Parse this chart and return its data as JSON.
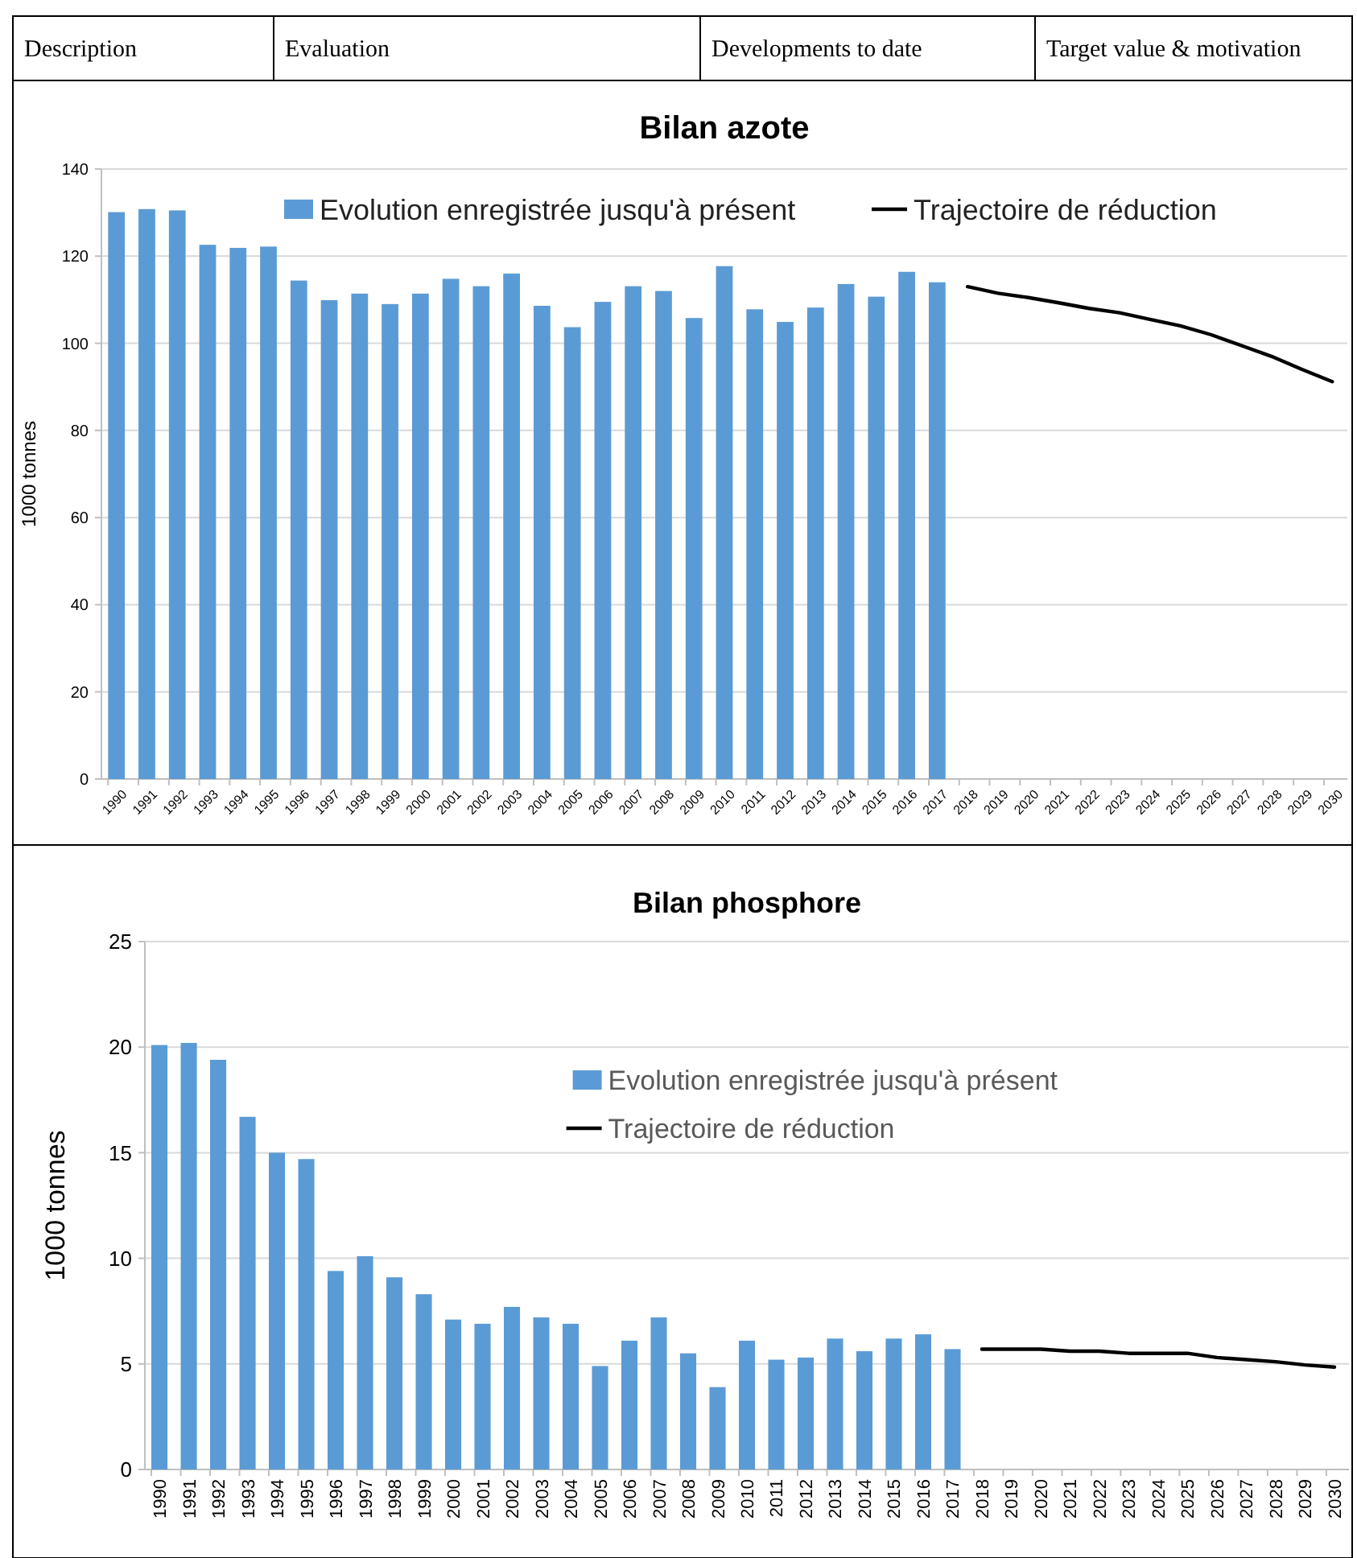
{
  "chart_data": [
    {
      "type": "other",
      "annotations": [
        "Description",
        "Evaluation",
        "Developments to date",
        "Target value & motivation"
      ]
    },
    {
      "type": "bar",
      "title": "Bilan azote",
      "ylabel": "1000 tonnes",
      "categories": [
        "1990",
        "1991",
        "1992",
        "1993",
        "1994",
        "1995",
        "1996",
        "1997",
        "1998",
        "1999",
        "2000",
        "2001",
        "2002",
        "2003",
        "2004",
        "2005",
        "2006",
        "2007",
        "2008",
        "2009",
        "2010",
        "2011",
        "2012",
        "2013",
        "2014",
        "2015",
        "2016",
        "2017",
        "2018",
        "2019",
        "2020",
        "2021",
        "2022",
        "2023",
        "2024",
        "2025",
        "2026",
        "2027",
        "2028",
        "2029",
        "2030"
      ],
      "series": [
        {
          "name": "Evolution enregistrée jusqu'à présent",
          "type": "bar",
          "color": "#5b9bd5",
          "values": [
            130.1,
            130.8,
            130.5,
            122.6,
            121.9,
            122.2,
            114.4,
            109.9,
            111.4,
            109.0,
            111.4,
            114.8,
            113.1,
            116.0,
            108.6,
            103.7,
            109.5,
            113.1,
            112.0,
            105.8,
            117.7,
            107.8,
            104.9,
            108.2,
            113.6,
            110.7,
            116.4,
            114.0,
            null,
            null,
            null,
            null,
            null,
            null,
            null,
            null,
            null,
            null,
            null,
            null,
            null
          ]
        },
        {
          "name": "Trajectoire de réduction",
          "type": "line",
          "color": "#000000",
          "values": [
            null,
            null,
            null,
            null,
            null,
            null,
            null,
            null,
            null,
            null,
            null,
            null,
            null,
            null,
            null,
            null,
            null,
            null,
            null,
            null,
            null,
            null,
            null,
            null,
            null,
            null,
            null,
            null,
            113.0,
            111.5,
            110.5,
            109.3,
            108.0,
            107.0,
            105.5,
            104.0,
            102.0,
            99.5,
            97.0,
            94.0,
            91.2
          ]
        }
      ],
      "ylim": [
        0,
        140
      ],
      "yticks": [
        0,
        20,
        40,
        60,
        80,
        100,
        120,
        140
      ],
      "grid": "y",
      "legend": "top",
      "marker": "none",
      "line_style": "solid"
    },
    {
      "type": "bar",
      "title": "Bilan phosphore",
      "ylabel": "1000 tonnes",
      "categories": [
        "1990",
        "1991",
        "1992",
        "1993",
        "1994",
        "1995",
        "1996",
        "1997",
        "1998",
        "1999",
        "2000",
        "2001",
        "2002",
        "2003",
        "2004",
        "2005",
        "2006",
        "2007",
        "2008",
        "2009",
        "2010",
        "2011",
        "2012",
        "2013",
        "2014",
        "2015",
        "2016",
        "2017",
        "2018",
        "2019",
        "2020",
        "2021",
        "2022",
        "2023",
        "2024",
        "2025",
        "2026",
        "2027",
        "2028",
        "2029",
        "2030"
      ],
      "series": [
        {
          "name": "Evolution enregistrée jusqu'à présent",
          "type": "bar",
          "color": "#5b9bd5",
          "values": [
            20.1,
            20.2,
            19.4,
            16.7,
            15.0,
            14.7,
            9.4,
            10.1,
            9.1,
            8.3,
            7.1,
            6.9,
            7.7,
            7.2,
            6.9,
            4.9,
            6.1,
            7.2,
            5.5,
            3.9,
            6.1,
            5.2,
            5.3,
            6.2,
            5.6,
            6.2,
            6.4,
            5.7,
            null,
            null,
            null,
            null,
            null,
            null,
            null,
            null,
            null,
            null,
            null,
            null,
            null
          ]
        },
        {
          "name": "Trajectoire de réduction",
          "type": "line",
          "color": "#000000",
          "values": [
            null,
            null,
            null,
            null,
            null,
            null,
            null,
            null,
            null,
            null,
            null,
            null,
            null,
            null,
            null,
            null,
            null,
            null,
            null,
            null,
            null,
            null,
            null,
            null,
            null,
            null,
            null,
            null,
            5.7,
            5.7,
            5.7,
            5.6,
            5.6,
            5.5,
            5.5,
            5.5,
            5.3,
            5.2,
            5.1,
            4.95,
            4.85
          ]
        }
      ],
      "ylim": [
        0,
        25
      ],
      "yticks": [
        0,
        5,
        10,
        15,
        20,
        25
      ],
      "grid": "y",
      "legend": "top right",
      "marker": "none",
      "line_style": "solid"
    }
  ]
}
